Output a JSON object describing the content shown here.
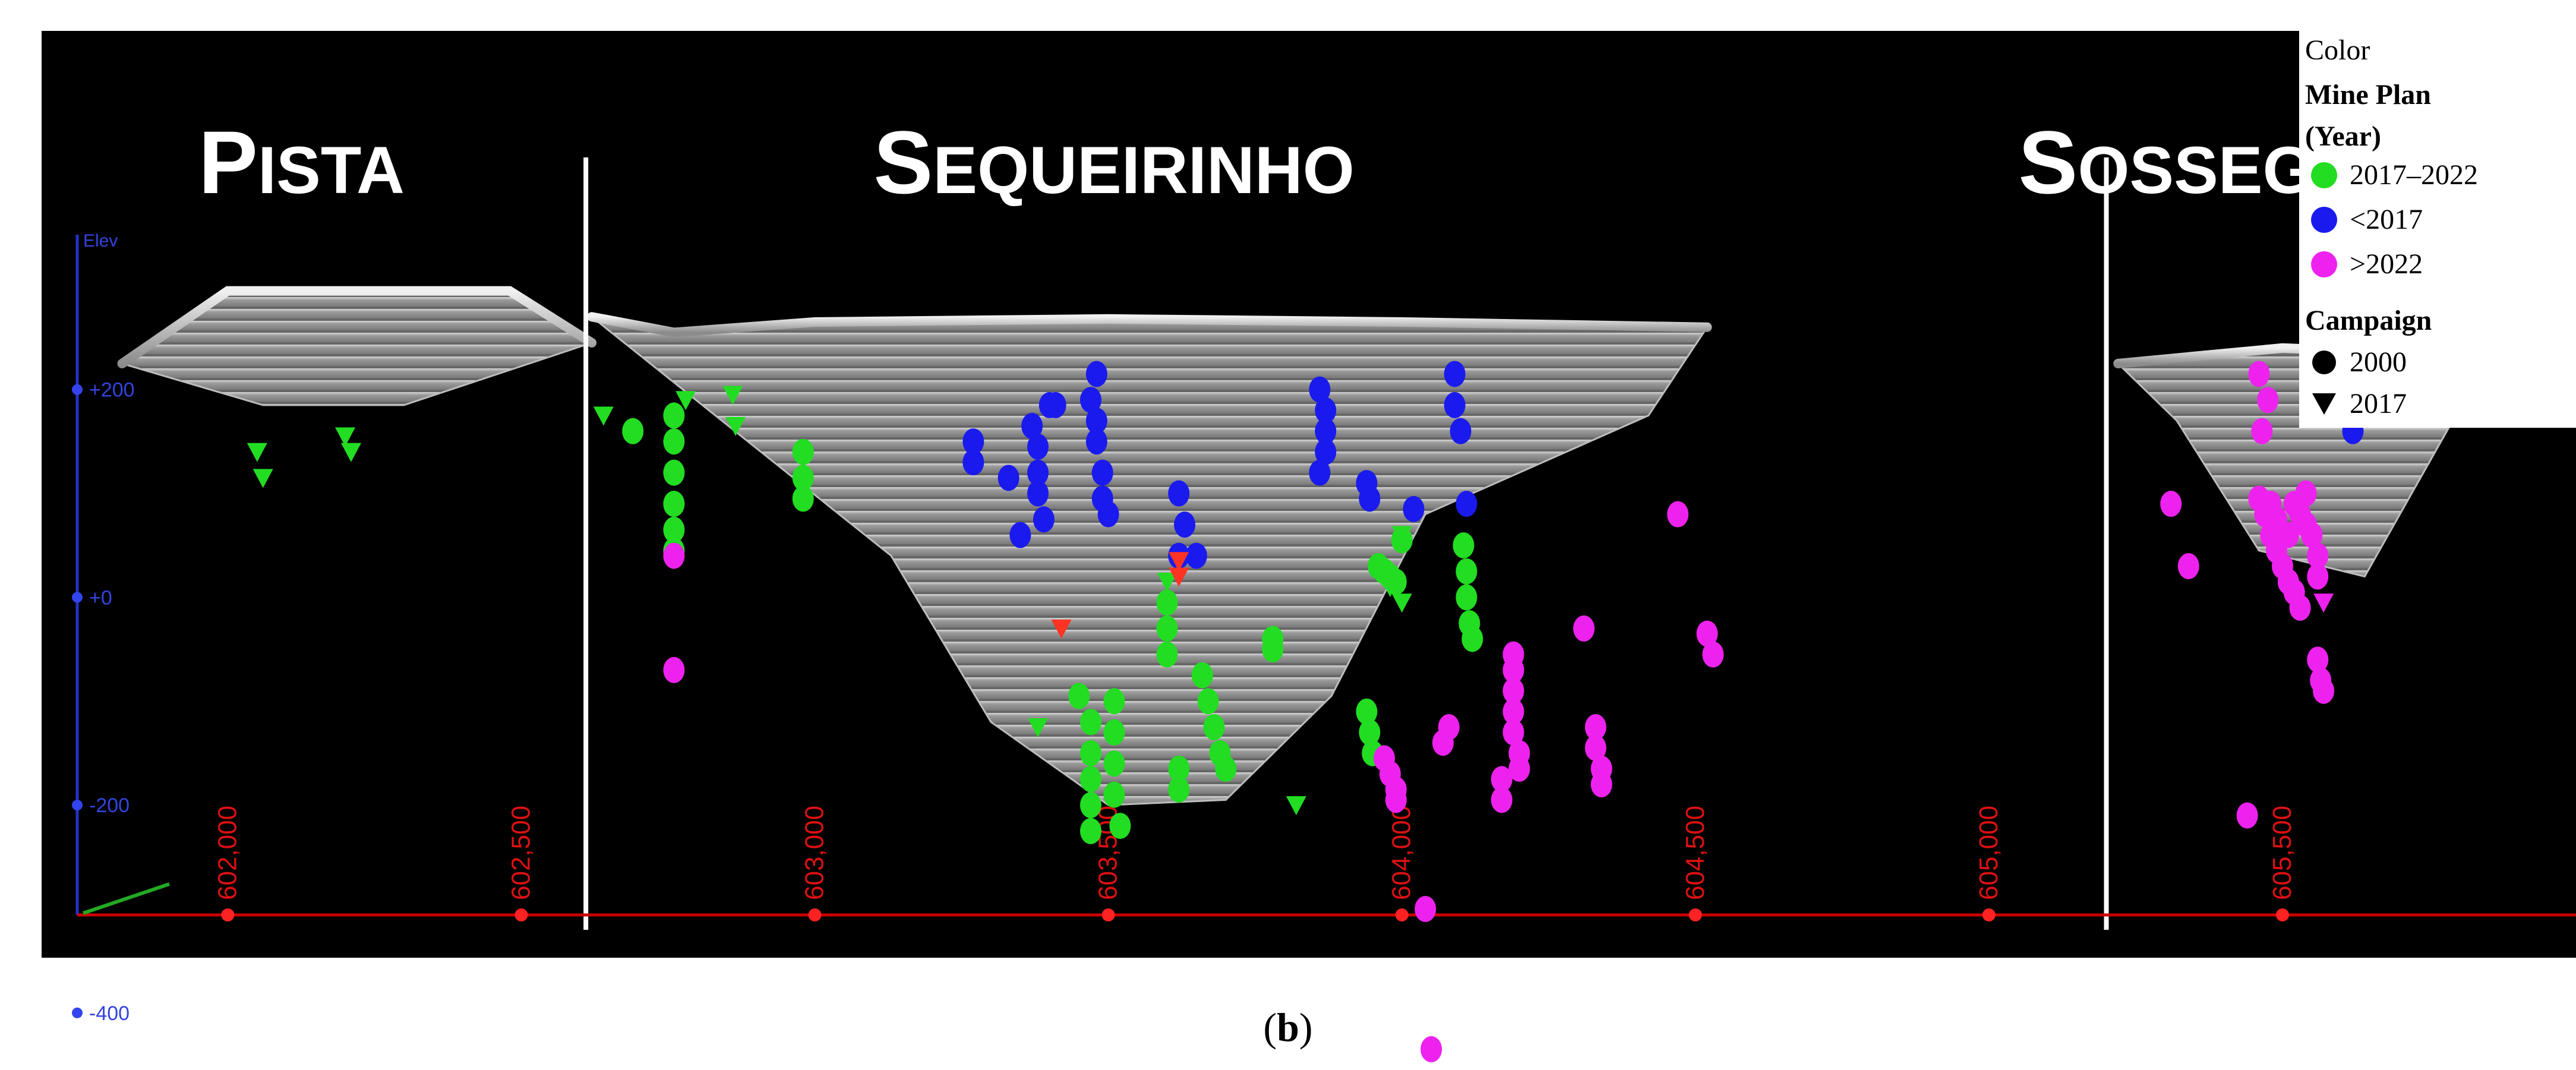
{
  "caption": {
    "open": "(",
    "letter": "b",
    "close": ")"
  },
  "chart_data": {
    "type": "scatter",
    "title": "",
    "xlabel": "",
    "ylabel": "Elev",
    "x_ticks": [
      {
        "value": 602000,
        "label": "602,000"
      },
      {
        "value": 602500,
        "label": "602,500"
      },
      {
        "value": 603000,
        "label": "603,000"
      },
      {
        "value": 603500,
        "label": "603,500"
      },
      {
        "value": 604000,
        "label": "604,000"
      },
      {
        "value": 604500,
        "label": "604,500"
      },
      {
        "value": 605000,
        "label": "605,000"
      },
      {
        "value": 605500,
        "label": "605,500"
      }
    ],
    "y_ticks": [
      {
        "value": 200,
        "label": "+200"
      },
      {
        "value": 0,
        "label": "+0"
      },
      {
        "value": -200,
        "label": "-200"
      },
      {
        "value": -400,
        "label": "-400"
      }
    ],
    "xlim": [
      601612,
      606000
    ],
    "ylim": [
      -455,
      575
    ],
    "background": "#000000",
    "axis_color": "#cc0000",
    "elev_axis_color": "#2233cc",
    "regions": [
      {
        "name": "Pista",
        "initial": "P",
        "rest": "ISTA",
        "x": 601950
      },
      {
        "name": "Sequeirinho",
        "initial": "S",
        "rest": "EQUEIRINHO",
        "x": 603100
      },
      {
        "name": "Sossego",
        "initial": "S",
        "rest": "OSSEGO",
        "x": 605050
      }
    ],
    "dividers_x": [
      602610,
      605200
    ],
    "legend": {
      "placement": "top-right",
      "color_title": "Color",
      "plan_title_1": "Mine Plan",
      "plan_title_2": "(Year)",
      "campaign_title": "Campaign",
      "plan_items": [
        {
          "label": "2017–2022",
          "color": "#22dd22"
        },
        {
          "label": "<2017",
          "color": "#1a1aee"
        },
        {
          "label": ">2022",
          "color": "#ee22ee"
        }
      ],
      "campaign_items": [
        {
          "label": "2000",
          "marker": "circle"
        },
        {
          "label": "2017",
          "marker": "triangle"
        }
      ]
    },
    "pits": [
      {
        "name": "Pista pit",
        "rim": [
          [
            601820,
            225
          ],
          [
            602000,
            295
          ],
          [
            602480,
            295
          ],
          [
            602620,
            245
          ]
        ],
        "floor": [
          [
            602060,
            185
          ],
          [
            602300,
            185
          ]
        ]
      },
      {
        "name": "Sequeirinho pit",
        "rim": [
          [
            602620,
            270
          ],
          [
            602760,
            255
          ],
          [
            603000,
            265
          ],
          [
            603500,
            268
          ],
          [
            604000,
            265
          ],
          [
            604520,
            260
          ]
        ],
        "floor": [
          [
            603130,
            40
          ],
          [
            603300,
            -120
          ],
          [
            603500,
            -200
          ],
          [
            603700,
            -195
          ],
          [
            603880,
            -95
          ],
          [
            604040,
            80
          ],
          [
            604420,
            175
          ]
        ]
      },
      {
        "name": "Sossego pit",
        "rim": [
          [
            605220,
            225
          ],
          [
            605500,
            240
          ],
          [
            605950,
            230
          ]
        ],
        "floor": [
          [
            605320,
            170
          ],
          [
            605460,
            45
          ],
          [
            605640,
            20
          ],
          [
            605790,
            170
          ]
        ]
      }
    ],
    "series": [
      {
        "plan": "2017-2022",
        "campaign": "2017",
        "color": "#22dd22",
        "marker": "triangle",
        "points": [
          [
            602050,
            140
          ],
          [
            602060,
            115
          ],
          [
            602200,
            155
          ],
          [
            602210,
            140
          ],
          [
            602640,
            175
          ],
          [
            602780,
            190
          ],
          [
            602860,
            195
          ],
          [
            602865,
            165
          ],
          [
            603380,
            -125
          ],
          [
            603600,
            15
          ],
          [
            603820,
            -200
          ],
          [
            603980,
            10
          ],
          [
            604000,
            60
          ],
          [
            604000,
            -5
          ]
        ]
      },
      {
        "plan": "2017-2022",
        "campaign": "2000",
        "color": "#22dd22",
        "marker": "circle",
        "points": [
          [
            602690,
            160
          ],
          [
            602760,
            175
          ],
          [
            602760,
            150
          ],
          [
            602760,
            120
          ],
          [
            602760,
            90
          ],
          [
            602760,
            65
          ],
          [
            602760,
            45
          ],
          [
            602980,
            140
          ],
          [
            602980,
            115
          ],
          [
            602980,
            95
          ],
          [
            603450,
            -95
          ],
          [
            603470,
            -120
          ],
          [
            603470,
            -150
          ],
          [
            603470,
            -175
          ],
          [
            603470,
            -200
          ],
          [
            603470,
            -225
          ],
          [
            603510,
            -100
          ],
          [
            603510,
            -130
          ],
          [
            603510,
            -160
          ],
          [
            603510,
            -190
          ],
          [
            603520,
            -220
          ],
          [
            603620,
            -165
          ],
          [
            603620,
            -185
          ],
          [
            603660,
            -75
          ],
          [
            603670,
            -100
          ],
          [
            603680,
            -125
          ],
          [
            603690,
            -150
          ],
          [
            603700,
            -165
          ],
          [
            603600,
            -5
          ],
          [
            603600,
            -30
          ],
          [
            603600,
            -55
          ],
          [
            603780,
            -40
          ],
          [
            603780,
            -50
          ],
          [
            603960,
            30
          ],
          [
            603970,
            25
          ],
          [
            603980,
            20
          ],
          [
            603990,
            15
          ],
          [
            604000,
            55
          ],
          [
            603940,
            -110
          ],
          [
            603945,
            -130
          ],
          [
            603950,
            -150
          ],
          [
            604105,
            50
          ],
          [
            604110,
            25
          ],
          [
            604110,
            0
          ],
          [
            604115,
            -25
          ],
          [
            604120,
            -40
          ]
        ]
      },
      {
        "plan": "<2017",
        "campaign": "2000",
        "color": "#1a1aee",
        "marker": "circle",
        "points": [
          [
            603270,
            150
          ],
          [
            603270,
            130
          ],
          [
            603330,
            115
          ],
          [
            603370,
            165
          ],
          [
            603380,
            145
          ],
          [
            603380,
            120
          ],
          [
            603380,
            100
          ],
          [
            603390,
            75
          ],
          [
            603350,
            60
          ],
          [
            603400,
            185
          ],
          [
            603410,
            185
          ],
          [
            603470,
            190
          ],
          [
            603480,
            170
          ],
          [
            603480,
            150
          ],
          [
            603490,
            120
          ],
          [
            603490,
            95
          ],
          [
            603500,
            80
          ],
          [
            603480,
            215
          ],
          [
            603620,
            100
          ],
          [
            603630,
            70
          ],
          [
            603620,
            40
          ],
          [
            603650,
            40
          ],
          [
            603860,
            200
          ],
          [
            603870,
            180
          ],
          [
            603870,
            160
          ],
          [
            603870,
            140
          ],
          [
            603860,
            120
          ],
          [
            603940,
            110
          ],
          [
            603945,
            95
          ],
          [
            604020,
            85
          ],
          [
            604090,
            215
          ],
          [
            604090,
            185
          ],
          [
            604100,
            160
          ],
          [
            604110,
            90
          ],
          [
            605580,
            210
          ],
          [
            605600,
            180
          ],
          [
            605620,
            160
          ]
        ]
      },
      {
        "plan": "<2017",
        "campaign": "2017",
        "color": "#ff3322",
        "marker": "triangle",
        "points": [
          [
            603420,
            -30
          ],
          [
            603620,
            35
          ],
          [
            603620,
            20
          ]
        ]
      },
      {
        "plan": ">2022",
        "campaign": "2000",
        "color": "#ee22ee",
        "marker": "circle",
        "points": [
          [
            602760,
            40
          ],
          [
            602760,
            -70
          ],
          [
            603970,
            -155
          ],
          [
            603980,
            -170
          ],
          [
            603990,
            -185
          ],
          [
            603990,
            -195
          ],
          [
            604040,
            -300
          ],
          [
            604050,
            -435
          ],
          [
            604070,
            -140
          ],
          [
            604080,
            -125
          ],
          [
            604170,
            -175
          ],
          [
            604170,
            -195
          ],
          [
            604190,
            -110
          ],
          [
            604190,
            -130
          ],
          [
            604200,
            -150
          ],
          [
            604200,
            -165
          ],
          [
            604190,
            -90
          ],
          [
            604190,
            -70
          ],
          [
            604190,
            -55
          ],
          [
            604310,
            -30
          ],
          [
            604330,
            -125
          ],
          [
            604330,
            -145
          ],
          [
            604340,
            -165
          ],
          [
            604340,
            -180
          ],
          [
            604470,
            80
          ],
          [
            604520,
            -35
          ],
          [
            604530,
            -55
          ],
          [
            605310,
            90
          ],
          [
            605340,
            30
          ],
          [
            605440,
            -210
          ],
          [
            605460,
            215
          ],
          [
            605475,
            190
          ],
          [
            605465,
            160
          ],
          [
            605460,
            95
          ],
          [
            605470,
            80
          ],
          [
            605480,
            60
          ],
          [
            605490,
            45
          ],
          [
            605500,
            30
          ],
          [
            605510,
            15
          ],
          [
            605520,
            5
          ],
          [
            605530,
            -10
          ],
          [
            605480,
            90
          ],
          [
            605490,
            75
          ],
          [
            605510,
            60
          ],
          [
            605520,
            90
          ],
          [
            605530,
            80
          ],
          [
            605540,
            70
          ],
          [
            605540,
            100
          ],
          [
            605550,
            60
          ],
          [
            605560,
            40
          ],
          [
            605560,
            20
          ],
          [
            605560,
            -60
          ],
          [
            605565,
            -80
          ],
          [
            605570,
            -90
          ]
        ]
      },
      {
        "plan": ">2022",
        "campaign": "2017",
        "color": "#ee22ee",
        "marker": "triangle",
        "points": [
          [
            605570,
            -5
          ]
        ]
      }
    ]
  }
}
